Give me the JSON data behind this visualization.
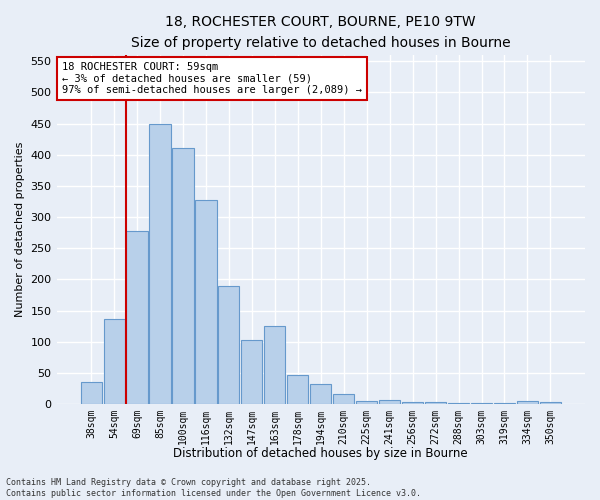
{
  "title_line1": "18, ROCHESTER COURT, BOURNE, PE10 9TW",
  "title_line2": "Size of property relative to detached houses in Bourne",
  "xlabel": "Distribution of detached houses by size in Bourne",
  "ylabel": "Number of detached properties",
  "bar_labels": [
    "38sqm",
    "54sqm",
    "69sqm",
    "85sqm",
    "100sqm",
    "116sqm",
    "132sqm",
    "147sqm",
    "163sqm",
    "178sqm",
    "194sqm",
    "210sqm",
    "225sqm",
    "241sqm",
    "256sqm",
    "272sqm",
    "288sqm",
    "303sqm",
    "319sqm",
    "334sqm",
    "350sqm"
  ],
  "bar_values": [
    36,
    137,
    278,
    450,
    410,
    328,
    190,
    103,
    125,
    46,
    33,
    17,
    5,
    7,
    4,
    4,
    2,
    1,
    2,
    5,
    4
  ],
  "bar_color": "#b8d0ea",
  "bar_edge_color": "#6699cc",
  "background_color": "#e8eef7",
  "grid_color": "#ffffff",
  "vline_color": "#cc0000",
  "vline_x": 1.5,
  "annotation_text": "18 ROCHESTER COURT: 59sqm\n← 3% of detached houses are smaller (59)\n97% of semi-detached houses are larger (2,089) →",
  "annotation_box_color": "#ffffff",
  "annotation_box_edge": "#cc0000",
  "footer_text": "Contains HM Land Registry data © Crown copyright and database right 2025.\nContains public sector information licensed under the Open Government Licence v3.0.",
  "ylim": [
    0,
    560
  ],
  "yticks": [
    0,
    50,
    100,
    150,
    200,
    250,
    300,
    350,
    400,
    450,
    500,
    550
  ]
}
